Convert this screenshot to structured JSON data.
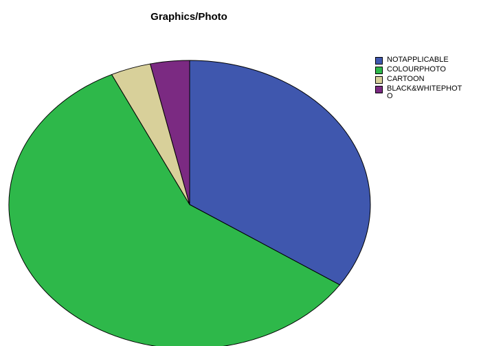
{
  "chart_data": {
    "type": "pie",
    "title": "Graphics/Photo",
    "categories": [
      "NOTAPPLICABLE",
      "COLOURPHOTO",
      "CARTOON",
      "BLACK&WHITEPHOTO"
    ],
    "values": [
      34.4,
      58.5,
      3.6,
      3.5
    ],
    "colors": [
      "#3f57ae",
      "#2eb84a",
      "#d8d09a",
      "#7b2a82"
    ],
    "legend_position": "top-right"
  }
}
